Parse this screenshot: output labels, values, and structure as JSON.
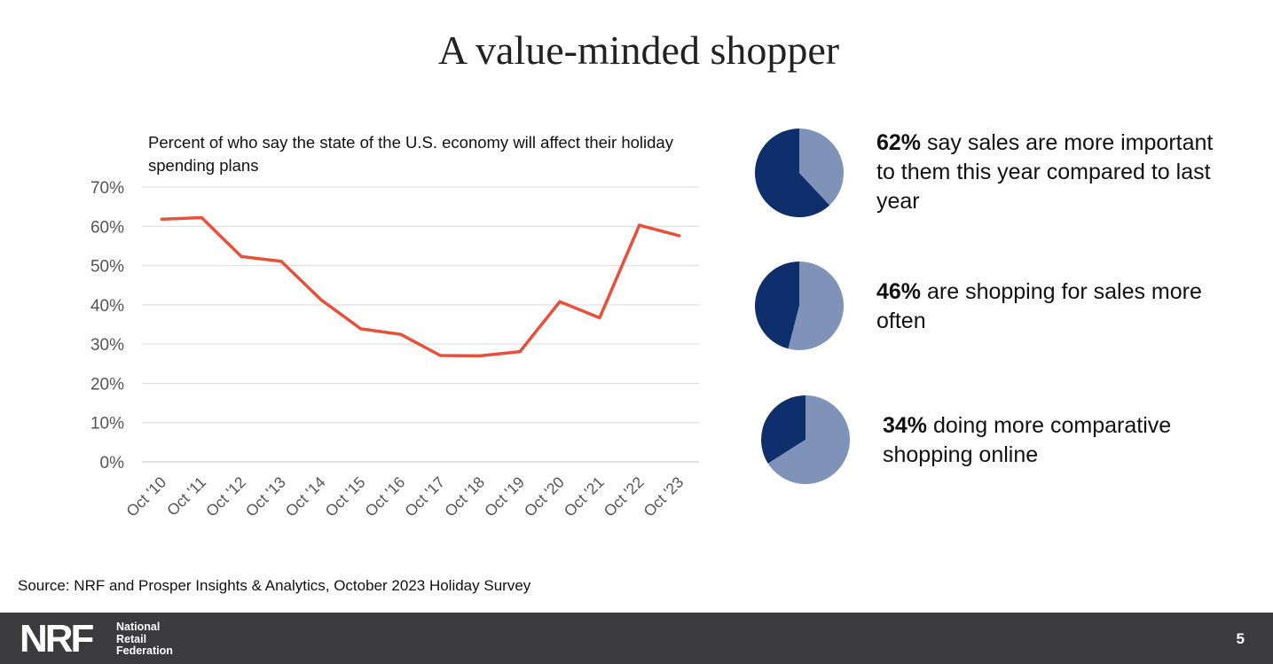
{
  "title": "A value-minded shopper",
  "source": "Source: NRF and Prosper Insights & Analytics, October 2023 Holiday Survey",
  "footer": {
    "logo_mark": "NRF",
    "logo_name": [
      "National",
      "Retail",
      "Federation"
    ],
    "page_number": "5",
    "background": "#3b3b3d"
  },
  "stats": [
    {
      "value_pct": 62,
      "bold": "62%",
      "text": " say sales are more important to them this year compared to last year"
    },
    {
      "value_pct": 46,
      "bold": "46%",
      "text": " are shopping for sales more often"
    },
    {
      "value_pct": 34,
      "bold": "34%",
      "text": " doing more comparative shopping online"
    }
  ],
  "pie_colors": {
    "highlight": "#0e2f6b",
    "rest": "#7f93b8"
  },
  "chart_data": {
    "type": "line",
    "title": "Percent of who say the state of the U.S. economy will affect their holiday spending plans",
    "categories": [
      "Oct '10",
      "Oct '11",
      "Oct '12",
      "Oct '13",
      "Oct '14",
      "Oct '15",
      "Oct '16",
      "Oct '17",
      "Oct '18",
      "Oct '19",
      "Oct '20",
      "Oct '21",
      "Oct '22",
      "Oct '23"
    ],
    "series": [
      {
        "values": [
          61.8,
          62.2,
          52.3,
          51.1,
          41.3,
          33.9,
          32.5,
          27.1,
          27.0,
          28.1,
          40.8,
          36.7,
          60.3,
          57.6
        ]
      }
    ],
    "y_ticks": [
      "0%",
      "10%",
      "20%",
      "30%",
      "40%",
      "50%",
      "60%",
      "70%"
    ],
    "ylim": [
      0,
      70
    ],
    "grid": true,
    "legend": false,
    "line_color": "#e8503a",
    "tick_color": "#555555"
  }
}
